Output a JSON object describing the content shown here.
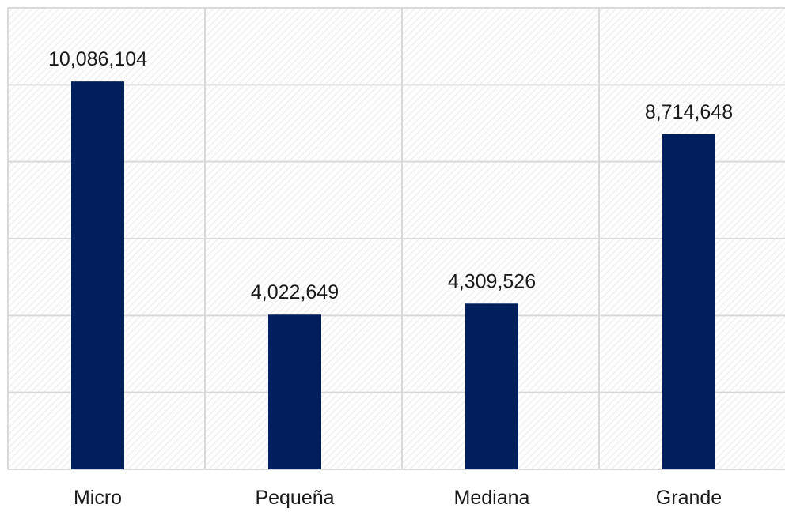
{
  "chart_data": {
    "type": "bar",
    "title": "",
    "xlabel": "",
    "ylabel": "",
    "categories": [
      "Micro",
      "Pequeña",
      "Mediana",
      "Grande"
    ],
    "values": [
      10086104,
      4022649,
      4309526,
      8714648
    ],
    "data_labels": [
      "10,086,104",
      "4,022,649",
      "4,309,526",
      "8,714,648"
    ],
    "ylim": [
      0,
      12000000
    ],
    "grid": true,
    "legend": "none",
    "colors": {
      "bar": "#001f5c",
      "grid": "#d9d9d9",
      "hatch": "#e6e6e6",
      "text": "#1a1a1a"
    }
  }
}
